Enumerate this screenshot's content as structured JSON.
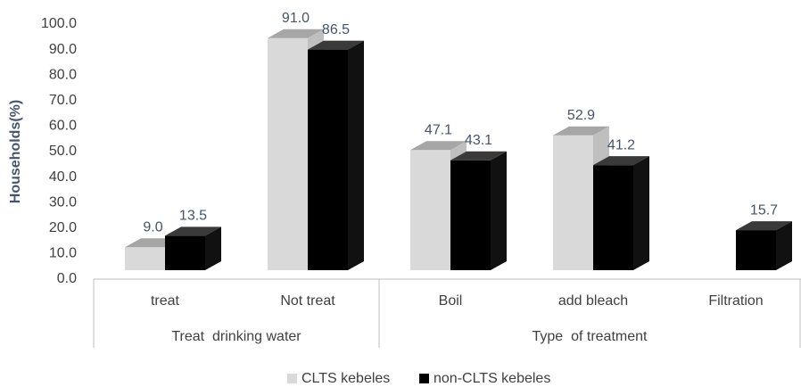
{
  "chart_data": {
    "type": "bar3d",
    "y_label": "Households(%)",
    "groups": [
      {
        "name": "Treat  drinking water",
        "categories": [
          "treat",
          "Not treat"
        ]
      },
      {
        "name": "Type  of treatment",
        "categories": [
          "Boil",
          "add bleach",
          "Filtration"
        ]
      }
    ],
    "series": [
      {
        "name": "CLTS kebeles",
        "color": "#d9d9d9",
        "top_color": "#a6a6a6",
        "side_color": "#bfbfbf",
        "values": [
          9.0,
          91.0,
          47.1,
          52.9,
          null
        ],
        "value_labels": [
          "9.0",
          "91.0",
          "47.1",
          "52.9",
          null
        ]
      },
      {
        "name": "non-CLTS kebeles",
        "color": "#000000",
        "top_color": "#3a3a3a",
        "side_color": "#111111",
        "values": [
          13.5,
          86.5,
          43.1,
          41.2,
          15.7
        ],
        "value_labels": [
          "13.5",
          "86.5",
          "43.1",
          "41.2",
          "15.7"
        ]
      }
    ],
    "ylim": [
      0,
      100
    ],
    "yticks": [
      {
        "value": 0,
        "label": "0.0"
      },
      {
        "value": 10,
        "label": "10.0"
      },
      {
        "value": 20,
        "label": "20.0"
      },
      {
        "value": 30,
        "label": "30.0"
      },
      {
        "value": 40,
        "label": "40.0"
      },
      {
        "value": 50,
        "label": "50.0"
      },
      {
        "value": 60,
        "label": "60.0"
      },
      {
        "value": 70,
        "label": "70.0"
      },
      {
        "value": 80,
        "label": "80.0"
      },
      {
        "value": 90,
        "label": "90.0"
      },
      {
        "value": 100,
        "label": "100.0"
      }
    ]
  }
}
